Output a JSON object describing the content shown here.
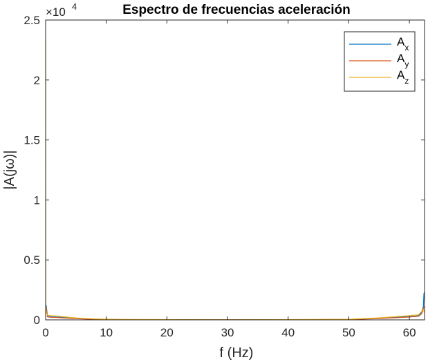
{
  "chart_data": {
    "type": "line",
    "title": "Espectro de frecuencias aceleración",
    "xlabel": "f (Hz)",
    "ylabel": "|A(jω)|",
    "y_exponent_label": "×10",
    "y_exponent_power": "4",
    "xlim": [
      0,
      62.5
    ],
    "ylim": [
      0,
      25000
    ],
    "xticks": [
      0,
      10,
      20,
      30,
      40,
      50,
      60
    ],
    "xtick_labels": [
      "0",
      "10",
      "20",
      "30",
      "40",
      "50",
      "60"
    ],
    "yticks": [
      0,
      5000,
      10000,
      15000,
      20000,
      25000
    ],
    "ytick_labels": [
      "0",
      "0.5",
      "1",
      "1.5",
      "2",
      "2.5"
    ],
    "grid": false,
    "legend_position": "top-right",
    "series": [
      {
        "name": "A",
        "subscript": "x",
        "color": "#0072BD",
        "x": [
          0,
          0.1,
          0.3,
          0.6,
          1,
          2,
          3,
          5,
          8,
          12,
          20,
          30,
          40,
          50,
          54.5,
          57.5,
          59.5,
          60.5,
          61.5,
          62.0,
          62.3,
          62.4,
          62.5
        ],
        "values": [
          900,
          1200,
          300,
          280,
          250,
          230,
          200,
          120,
          60,
          30,
          15,
          10,
          15,
          40,
          120,
          200,
          260,
          300,
          350,
          600,
          1100,
          2200,
          2300
        ]
      },
      {
        "name": "A",
        "subscript": "y",
        "color": "#D95319",
        "x": [
          0,
          0.1,
          0.3,
          0.6,
          1,
          2,
          3,
          5,
          8,
          12,
          20,
          30,
          40,
          50,
          54.5,
          57.5,
          59.5,
          60.5,
          61.5,
          62.0,
          62.3,
          62.4,
          62.5
        ],
        "values": [
          800,
          1000,
          250,
          230,
          210,
          190,
          160,
          100,
          50,
          25,
          12,
          8,
          12,
          30,
          100,
          170,
          220,
          260,
          300,
          500,
          900,
          1100,
          1000
        ]
      },
      {
        "name": "A",
        "subscript": "z",
        "color": "#EDB120",
        "x": [
          0,
          0.02,
          0.1,
          0.3,
          0.6,
          1,
          2,
          3,
          5,
          8,
          12,
          20,
          30,
          40,
          50,
          54.5,
          57.5,
          59.5,
          60.5,
          61.5,
          62.0,
          62.3,
          62.4,
          62.5
        ],
        "values": [
          23300,
          1200,
          600,
          400,
          380,
          350,
          320,
          260,
          160,
          80,
          40,
          20,
          12,
          20,
          50,
          150,
          260,
          330,
          380,
          420,
          700,
          900,
          700,
          600
        ]
      }
    ]
  }
}
